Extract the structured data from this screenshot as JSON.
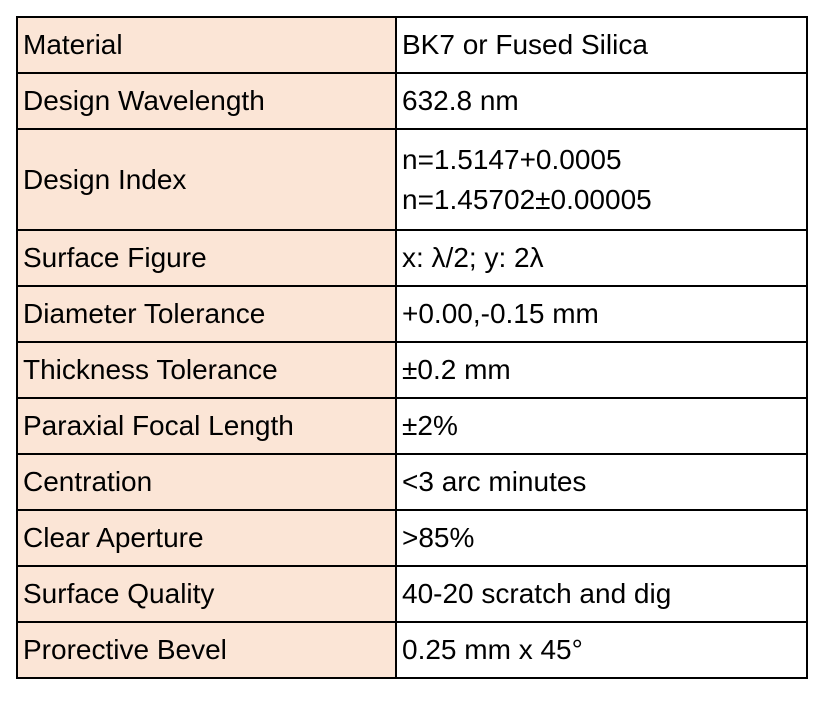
{
  "table": {
    "rows": [
      [
        "Material",
        "BK7 or Fused Silica"
      ],
      [
        "Design Wavelength",
        "632.8 nm"
      ],
      [
        "Design Index",
        [
          "n=1.5147+0.0005",
          "n=1.45702±0.00005"
        ]
      ],
      [
        "Surface Figure",
        "x: λ/2; y: 2λ"
      ],
      [
        "Diameter Tolerance",
        "+0.00,-0.15 mm"
      ],
      [
        "Thickness Tolerance",
        "±0.2 mm"
      ],
      [
        "Paraxial Focal Length",
        "±2%"
      ],
      [
        "Centration",
        "<3 arc minutes"
      ],
      [
        "Clear Aperture",
        ">85%"
      ],
      [
        "Surface Quality",
        "40-20 scratch and dig"
      ],
      [
        "Prorective Bevel",
        "0.25 mm x 45°"
      ]
    ]
  }
}
